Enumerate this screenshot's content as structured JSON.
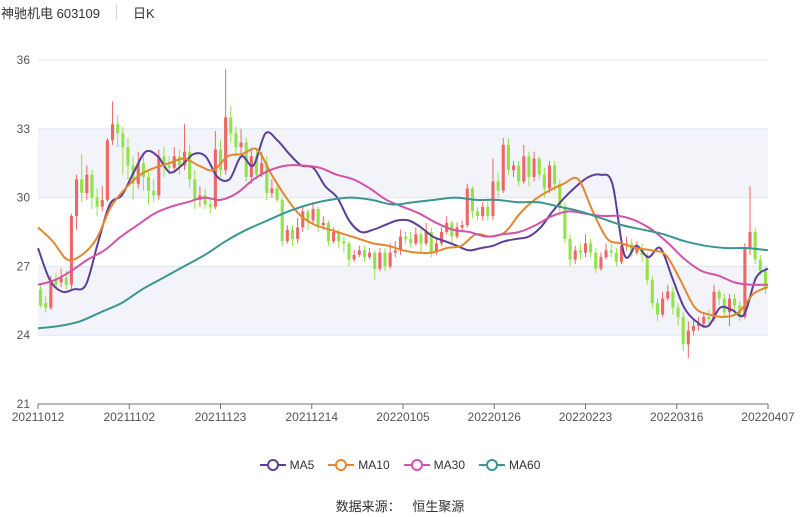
{
  "header": {
    "stock_title": "神驰机电 603109",
    "period": "日K"
  },
  "source": {
    "label": "数据来源：",
    "name": "恒生聚源"
  },
  "colors": {
    "up": "#ee6666",
    "down": "#91e349",
    "ma5": "#5c3e98",
    "ma10": "#e2872f",
    "ma30": "#d453a6",
    "ma60": "#3b9591",
    "band": "#f3f4fa",
    "grid": "#e0e6f1"
  },
  "chart_data": {
    "type": "candlestick",
    "y_ticks": [
      "36",
      "33",
      "30",
      "27",
      "24",
      "21"
    ],
    "ylim": [
      21,
      36
    ],
    "x_ticks": [
      "20211012",
      "20211102",
      "20211123",
      "20211214",
      "20220105",
      "20220126",
      "20220223",
      "20220316",
      "20220407"
    ],
    "legend": [
      {
        "key": "ma5",
        "label": "MA5"
      },
      {
        "key": "ma10",
        "label": "MA10"
      },
      {
        "key": "ma30",
        "label": "MA30"
      },
      {
        "key": "ma60",
        "label": "MA60"
      }
    ],
    "candles": [
      [
        26.0,
        25.3,
        26.2,
        25.2
      ],
      [
        25.4,
        25.2,
        25.7,
        25.0
      ],
      [
        25.2,
        26.4,
        26.6,
        25.1
      ],
      [
        26.4,
        26.2,
        26.7,
        26.0
      ],
      [
        26.3,
        26.5,
        26.9,
        26.1
      ],
      [
        26.5,
        26.2,
        26.8,
        26.0
      ],
      [
        26.2,
        29.2,
        29.3,
        26.0
      ],
      [
        29.2,
        30.8,
        31.0,
        28.6
      ],
      [
        30.8,
        30.2,
        31.9,
        29.8
      ],
      [
        30.2,
        31.0,
        31.4,
        29.9
      ],
      [
        31.0,
        30.0,
        31.2,
        29.5
      ],
      [
        30.0,
        29.6,
        30.4,
        29.2
      ],
      [
        29.6,
        29.9,
        30.5,
        29.4
      ],
      [
        29.9,
        32.5,
        32.6,
        29.8
      ],
      [
        32.5,
        33.2,
        34.2,
        32.3
      ],
      [
        33.2,
        32.8,
        33.6,
        32.2
      ],
      [
        32.8,
        32.2,
        33.1,
        31.0
      ],
      [
        32.2,
        31.4,
        32.6,
        30.8
      ],
      [
        31.4,
        30.6,
        31.8,
        29.9
      ],
      [
        30.6,
        31.5,
        32.0,
        30.4
      ],
      [
        31.5,
        30.9,
        31.8,
        30.3
      ],
      [
        30.9,
        30.3,
        31.2,
        29.7
      ],
      [
        30.3,
        30.1,
        30.8,
        29.8
      ],
      [
        30.1,
        31.8,
        32.1,
        29.9
      ],
      [
        31.8,
        31.4,
        32.2,
        30.9
      ],
      [
        31.4,
        31.3,
        31.8,
        31.0
      ],
      [
        31.3,
        31.8,
        32.2,
        31.1
      ],
      [
        31.8,
        31.4,
        32.1,
        31.0
      ],
      [
        31.4,
        32.0,
        33.2,
        31.2
      ],
      [
        32.0,
        30.8,
        32.3,
        30.4
      ],
      [
        30.8,
        29.9,
        31.2,
        29.5
      ],
      [
        29.9,
        30.1,
        30.5,
        29.6
      ],
      [
        30.1,
        29.7,
        30.4,
        29.5
      ],
      [
        29.7,
        29.6,
        30.0,
        29.3
      ],
      [
        29.6,
        32.1,
        32.9,
        29.5
      ],
      [
        32.1,
        31.2,
        32.5,
        30.9
      ],
      [
        31.2,
        33.5,
        35.6,
        31.0
      ],
      [
        33.5,
        32.8,
        34.0,
        32.4
      ],
      [
        32.8,
        32.2,
        33.1,
        31.8
      ],
      [
        32.2,
        32.4,
        33.0,
        31.9
      ],
      [
        32.4,
        30.9,
        32.6,
        30.7
      ],
      [
        30.9,
        31.8,
        32.1,
        30.6
      ],
      [
        31.8,
        31.0,
        32.1,
        30.8
      ],
      [
        31.0,
        31.5,
        32.0,
        30.9
      ],
      [
        31.5,
        30.2,
        31.8,
        29.9
      ],
      [
        30.2,
        30.4,
        30.8,
        30.0
      ],
      [
        30.4,
        29.9,
        30.7,
        29.8
      ],
      [
        29.9,
        28.1,
        30.0,
        27.9
      ],
      [
        28.1,
        28.6,
        28.8,
        28.0
      ],
      [
        28.6,
        28.2,
        28.8,
        27.9
      ],
      [
        28.2,
        28.7,
        29.1,
        28.0
      ],
      [
        28.7,
        29.4,
        29.6,
        28.5
      ],
      [
        29.4,
        29.0,
        29.5,
        28.6
      ],
      [
        29.0,
        29.5,
        29.8,
        28.9
      ],
      [
        29.5,
        28.8,
        29.6,
        28.5
      ],
      [
        28.8,
        28.9,
        29.2,
        28.6
      ],
      [
        28.9,
        28.1,
        29.0,
        27.9
      ],
      [
        28.1,
        28.5,
        28.7,
        28.0
      ],
      [
        28.5,
        28.1,
        28.6,
        27.8
      ],
      [
        28.1,
        28.0,
        28.3,
        27.6
      ],
      [
        28.0,
        27.3,
        28.1,
        27.0
      ],
      [
        27.3,
        27.5,
        27.7,
        27.2
      ],
      [
        27.5,
        27.7,
        27.9,
        27.4
      ],
      [
        27.7,
        27.4,
        27.9,
        27.2
      ],
      [
        27.4,
        27.6,
        27.8,
        27.3
      ],
      [
        27.6,
        26.9,
        27.7,
        26.4
      ],
      [
        26.9,
        27.6,
        27.8,
        26.8
      ],
      [
        27.6,
        27.0,
        27.8,
        26.8
      ],
      [
        27.0,
        27.6,
        28.0,
        26.9
      ],
      [
        27.6,
        27.7,
        28.1,
        27.4
      ],
      [
        27.7,
        28.3,
        28.6,
        27.5
      ],
      [
        28.3,
        28.2,
        28.5,
        28.0
      ],
      [
        28.2,
        28.0,
        28.5,
        27.8
      ],
      [
        28.0,
        28.4,
        28.7,
        27.9
      ],
      [
        28.4,
        28.0,
        28.6,
        27.6
      ],
      [
        28.0,
        28.5,
        28.9,
        27.9
      ],
      [
        28.5,
        27.6,
        28.7,
        27.4
      ],
      [
        27.6,
        28.0,
        28.2,
        27.5
      ],
      [
        28.0,
        28.5,
        28.7,
        27.9
      ],
      [
        28.5,
        28.9,
        29.2,
        28.4
      ],
      [
        28.9,
        28.3,
        29.0,
        28.0
      ],
      [
        28.3,
        28.7,
        28.9,
        28.2
      ],
      [
        28.7,
        28.8,
        29.0,
        28.5
      ],
      [
        28.8,
        30.4,
        30.6,
        28.7
      ],
      [
        30.4,
        29.4,
        30.5,
        29.1
      ],
      [
        29.4,
        29.2,
        29.6,
        29.0
      ],
      [
        29.2,
        29.6,
        29.8,
        29.0
      ],
      [
        29.6,
        29.2,
        29.9,
        29.0
      ],
      [
        29.2,
        30.7,
        31.7,
        29.0
      ],
      [
        30.7,
        30.3,
        31.1,
        30.0
      ],
      [
        30.3,
        32.3,
        32.6,
        30.2
      ],
      [
        32.3,
        31.2,
        32.6,
        31.0
      ],
      [
        31.2,
        31.4,
        31.6,
        30.9
      ],
      [
        31.4,
        30.7,
        31.6,
        30.5
      ],
      [
        30.7,
        31.8,
        32.3,
        30.6
      ],
      [
        31.8,
        30.9,
        32.0,
        30.5
      ],
      [
        30.9,
        31.7,
        32.0,
        30.7
      ],
      [
        31.7,
        31.0,
        31.8,
        30.8
      ],
      [
        31.0,
        30.4,
        31.3,
        30.0
      ],
      [
        30.4,
        31.4,
        31.6,
        30.2
      ],
      [
        31.4,
        30.6,
        31.6,
        30.3
      ],
      [
        30.6,
        29.6,
        30.8,
        29.2
      ],
      [
        29.6,
        28.2,
        29.8,
        28.0
      ],
      [
        28.2,
        27.3,
        28.4,
        27.0
      ],
      [
        27.3,
        27.7,
        27.9,
        27.1
      ],
      [
        27.7,
        27.6,
        28.0,
        27.3
      ],
      [
        27.6,
        28.0,
        28.4,
        27.4
      ],
      [
        28.0,
        27.6,
        28.2,
        27.4
      ],
      [
        27.6,
        26.9,
        27.8,
        26.7
      ],
      [
        26.9,
        27.4,
        27.6,
        26.8
      ],
      [
        27.4,
        27.7,
        28.0,
        27.3
      ],
      [
        27.7,
        27.6,
        28.0,
        27.4
      ],
      [
        27.6,
        27.2,
        27.8,
        27.0
      ],
      [
        27.2,
        27.9,
        28.1,
        27.1
      ],
      [
        27.9,
        28.0,
        28.3,
        27.7
      ],
      [
        28.0,
        27.6,
        28.2,
        27.4
      ],
      [
        27.6,
        27.8,
        28.1,
        27.5
      ],
      [
        27.8,
        27.5,
        28.0,
        27.2
      ],
      [
        27.5,
        26.4,
        27.6,
        26.2
      ],
      [
        26.4,
        25.4,
        26.6,
        25.2
      ],
      [
        25.4,
        24.9,
        25.6,
        24.6
      ],
      [
        24.9,
        25.6,
        25.9,
        24.8
      ],
      [
        25.6,
        25.9,
        26.2,
        25.5
      ],
      [
        25.9,
        25.2,
        26.1,
        24.9
      ],
      [
        25.2,
        24.8,
        25.4,
        24.4
      ],
      [
        24.8,
        23.6,
        25.0,
        23.3
      ],
      [
        23.6,
        24.2,
        24.6,
        23.0
      ],
      [
        24.2,
        24.4,
        24.7,
        24.0
      ],
      [
        24.4,
        24.5,
        24.8,
        24.2
      ],
      [
        24.5,
        24.8,
        25.0,
        24.3
      ],
      [
        24.8,
        24.7,
        25.1,
        24.5
      ],
      [
        24.7,
        25.9,
        26.2,
        24.6
      ],
      [
        25.9,
        25.6,
        26.0,
        25.3
      ],
      [
        25.6,
        25.0,
        25.8,
        24.8
      ],
      [
        25.0,
        25.6,
        25.8,
        24.4
      ],
      [
        25.6,
        25.3,
        25.8,
        25.1
      ],
      [
        25.3,
        24.8,
        25.5,
        24.6
      ],
      [
        24.8,
        27.8,
        28.0,
        24.7
      ],
      [
        27.8,
        28.5,
        30.5,
        27.5
      ],
      [
        28.5,
        27.3,
        28.7,
        27.1
      ],
      [
        27.3,
        26.8,
        27.5,
        26.6
      ],
      [
        26.8,
        26.0,
        27.0,
        25.8
      ]
    ],
    "series": [
      {
        "key": "ma5",
        "name": "MA5",
        "values": [
          27.8,
          26.4,
          25.9,
          26.0,
          26.2,
          28.0,
          29.7,
          30.1,
          31.1,
          32.0,
          31.8,
          31.1,
          31.4,
          31.9,
          31.8,
          30.9,
          30.8,
          31.8,
          31.4,
          32.8,
          32.5,
          31.9,
          31.4,
          31.3,
          30.5,
          30.0,
          29.0,
          28.5,
          28.6,
          28.8,
          29.0,
          29.0,
          28.7,
          28.3,
          28.1,
          27.9,
          27.7,
          27.8,
          27.9,
          28.1,
          28.2,
          28.3,
          28.7,
          29.4,
          30.0,
          30.5,
          30.9,
          31.0,
          30.6,
          27.5,
          27.9,
          27.4,
          27.8,
          26.5,
          25.2,
          24.6,
          24.4,
          25.2,
          25.1,
          24.9,
          26.5,
          26.9
        ]
      },
      {
        "key": "ma10",
        "name": "MA10",
        "values": [
          28.7,
          28.1,
          27.3,
          27.5,
          28.2,
          29.6,
          30.4,
          31.0,
          31.3,
          31.5,
          31.7,
          31.4,
          31.2,
          31.8,
          31.9,
          32.1,
          31.0,
          30.0,
          29.2,
          28.8,
          28.6,
          28.4,
          28.2,
          28.0,
          27.9,
          27.7,
          27.6,
          27.6,
          27.8,
          27.9,
          28.4,
          28.3,
          28.5,
          29.3,
          29.9,
          30.3,
          30.6,
          30.8,
          29.4,
          28.2,
          28.0,
          27.8,
          27.7,
          27.5,
          26.4,
          25.2,
          24.9,
          24.8,
          25.0,
          25.8,
          26.1
        ]
      },
      {
        "key": "ma30",
        "name": "MA30",
        "values": [
          26.2,
          26.4,
          26.8,
          27.3,
          27.7,
          28.3,
          28.8,
          29.3,
          29.6,
          29.8,
          30.0,
          29.9,
          30.2,
          30.8,
          31.2,
          31.4,
          31.4,
          31.3,
          31.0,
          30.8,
          30.4,
          29.9,
          29.6,
          29.3,
          28.9,
          28.6,
          28.5,
          28.3,
          28.4,
          28.5,
          28.8,
          29.2,
          29.4,
          29.3,
          29.2,
          29.2,
          29.0,
          28.6,
          28.0,
          27.3,
          26.8,
          26.6,
          26.3,
          26.2,
          26.2
        ]
      },
      {
        "key": "ma60",
        "name": "MA60",
        "values": [
          24.3,
          24.4,
          24.6,
          25.0,
          25.4,
          26.0,
          26.5,
          27.0,
          27.5,
          28.1,
          28.6,
          29.0,
          29.4,
          29.7,
          29.9,
          30.0,
          29.9,
          29.7,
          29.8,
          29.9,
          30.0,
          29.9,
          29.9,
          29.8,
          29.8,
          29.6,
          29.4,
          29.1,
          28.8,
          28.6,
          28.4,
          28.1,
          27.9,
          27.8,
          27.8,
          27.7
        ]
      }
    ]
  }
}
